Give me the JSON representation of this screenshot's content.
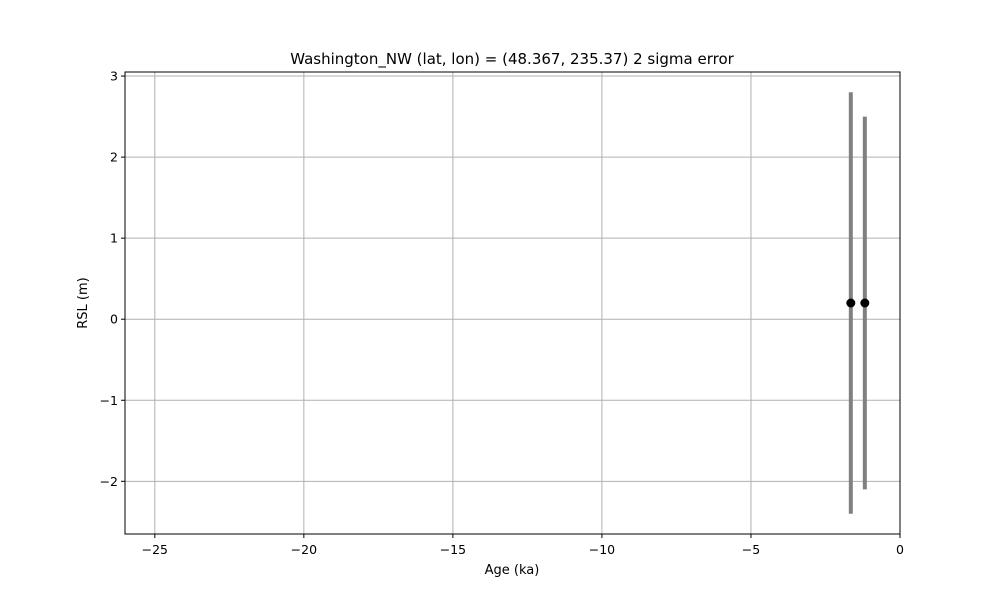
{
  "chart_data": {
    "type": "scatter",
    "title": "Washington_NW (lat, lon) = (48.367, 235.37)  2 sigma error",
    "xlabel": "Age (ka)",
    "ylabel": "RSL (m)",
    "xlim": [
      -26,
      0
    ],
    "ylim": [
      -2.65,
      3.05
    ],
    "xticks": [
      -25,
      -20,
      -15,
      -10,
      -5,
      0
    ],
    "yticks": [
      -2,
      -1,
      0,
      1,
      2,
      3
    ],
    "x_tick_labels": [
      "−25",
      "−20",
      "−15",
      "−10",
      "−5",
      "0"
    ],
    "y_tick_labels": [
      "−2",
      "−1",
      "0",
      "1",
      "2",
      "3"
    ],
    "grid": true,
    "points": [
      {
        "x": -1.65,
        "y": 0.2,
        "err_low": -2.4,
        "err_high": 2.8
      },
      {
        "x": -1.18,
        "y": 0.2,
        "err_low": -2.1,
        "err_high": 2.5
      }
    ],
    "colors": {
      "marker": "#000000",
      "errorbar": "#808080",
      "grid": "#b0b0b0"
    }
  }
}
